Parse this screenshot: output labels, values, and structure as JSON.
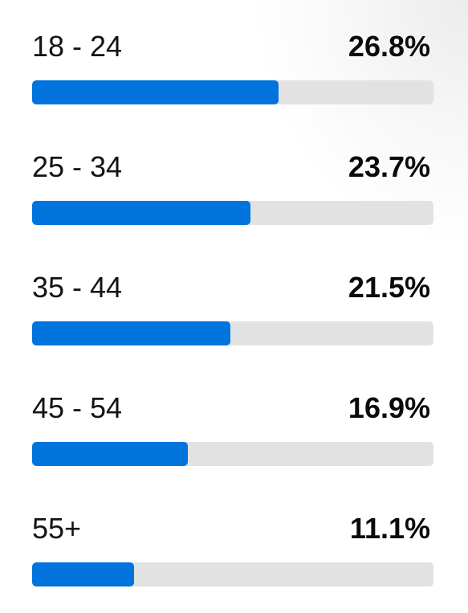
{
  "colors": {
    "bar_fill": "#0073dd",
    "bar_track": "#e2e2e2",
    "text": "#141414"
  },
  "chart_data": {
    "type": "bar",
    "orientation": "horizontal",
    "categories": [
      "18 - 24",
      "25 - 34",
      "35 - 44",
      "45 - 54",
      "55+"
    ],
    "values": [
      26.8,
      23.7,
      21.5,
      16.9,
      11.1
    ],
    "value_labels": [
      "26.8%",
      "23.7%",
      "21.5%",
      "16.9%",
      "11.1%"
    ],
    "unit": "%",
    "title": "",
    "xlabel": "",
    "ylabel": "",
    "xlim": [
      0,
      43.6
    ],
    "grid": false,
    "legend": "none"
  }
}
